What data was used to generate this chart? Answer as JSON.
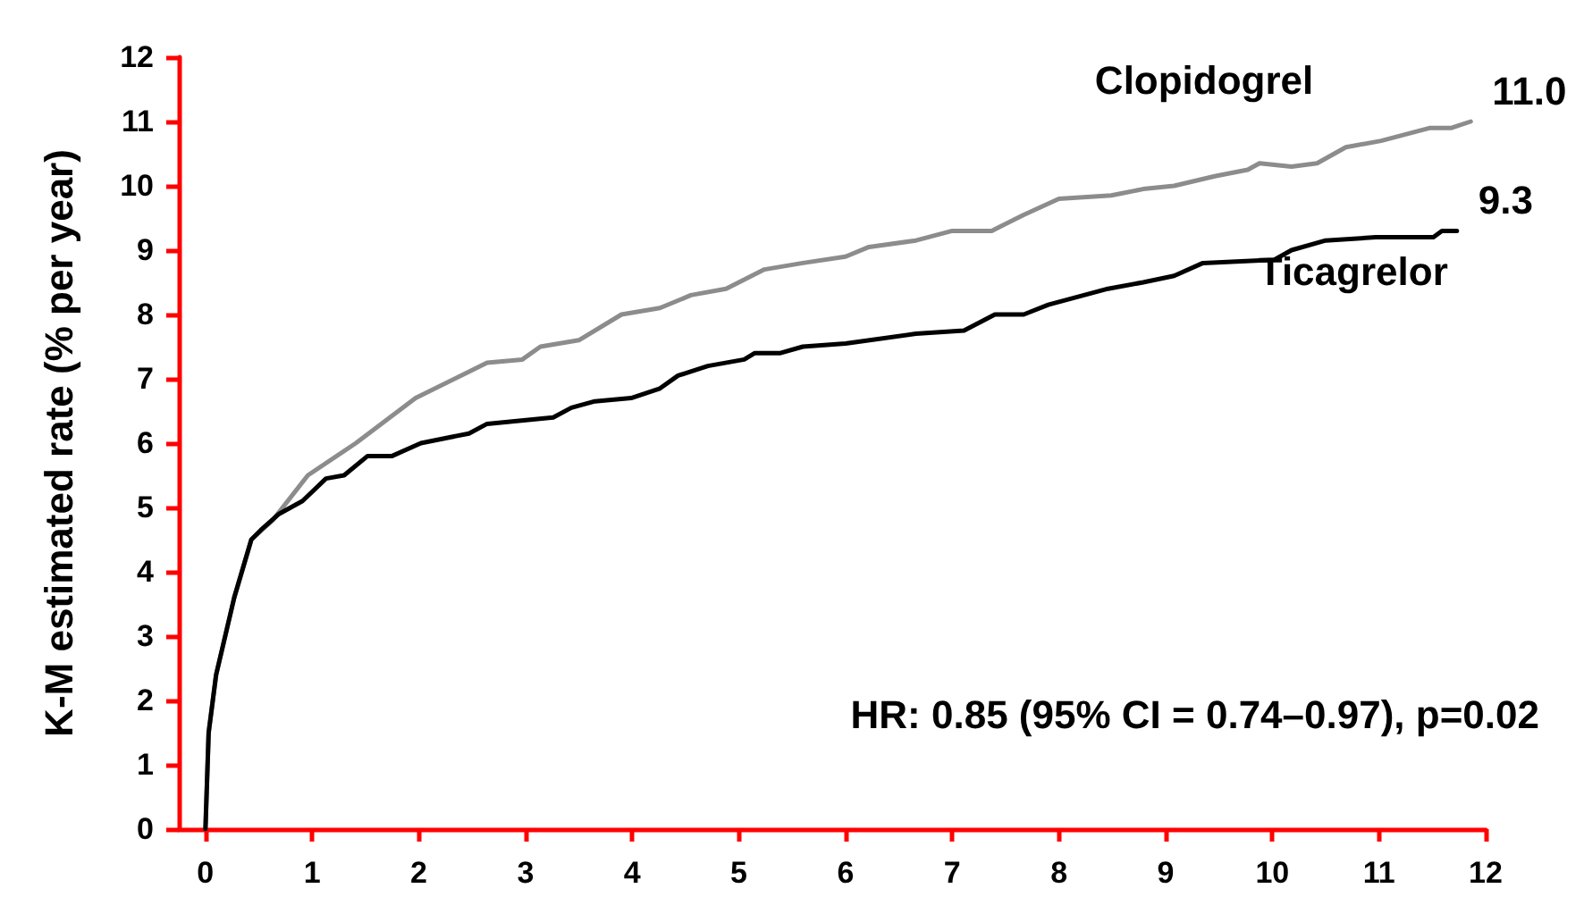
{
  "chart_data": {
    "type": "line",
    "ylabel": "K-M estimated rate (% per year)",
    "xlim": [
      -0.25,
      12
    ],
    "xticks": [
      0,
      1,
      2,
      3,
      4,
      5,
      6,
      7,
      8,
      9,
      10,
      11,
      12
    ],
    "ylim": [
      0,
      12
    ],
    "yticks": [
      0,
      1,
      2,
      3,
      4,
      5,
      6,
      7,
      8,
      9,
      10,
      11,
      12
    ],
    "grid": false,
    "legend": false,
    "marker": "none",
    "line_style": "solid",
    "series": [
      {
        "name": "Clopidogrel",
        "color": "#8c8c8c",
        "x": [
          0,
          0.03,
          0.1,
          0.27,
          0.43,
          0.63,
          0.96,
          1.41,
          1.97,
          2.64,
          2.97,
          3.14,
          3.5,
          3.9,
          4.26,
          4.55,
          4.88,
          5.24,
          5.6,
          6.0,
          6.22,
          6.66,
          7.0,
          7.37,
          7.67,
          8.0,
          8.49,
          8.79,
          9.08,
          9.46,
          9.77,
          9.88,
          10.18,
          10.42,
          10.69,
          11.02,
          11.48,
          11.68,
          11.86
        ],
        "values": [
          0,
          1.5,
          2.4,
          3.6,
          4.5,
          4.8,
          5.5,
          6.0,
          6.7,
          7.25,
          7.3,
          7.5,
          7.6,
          8.0,
          8.1,
          8.3,
          8.4,
          8.7,
          8.8,
          8.9,
          9.05,
          9.15,
          9.3,
          9.3,
          9.55,
          9.8,
          9.85,
          9.95,
          10.0,
          10.15,
          10.25,
          10.35,
          10.3,
          10.35,
          10.6,
          10.7,
          10.9,
          10.9,
          11.0
        ]
      },
      {
        "name": "Ticagrelor",
        "color": "#000000",
        "x": [
          0,
          0.03,
          0.1,
          0.27,
          0.43,
          0.52,
          0.69,
          0.91,
          1.13,
          1.3,
          1.52,
          1.75,
          2.02,
          2.47,
          2.64,
          3.26,
          3.43,
          3.65,
          3.99,
          4.26,
          4.43,
          4.71,
          5.05,
          5.15,
          5.39,
          5.6,
          6.0,
          6.66,
          7.11,
          7.4,
          7.67,
          7.9,
          8.46,
          8.79,
          9.08,
          9.35,
          10.02,
          10.18,
          10.5,
          10.97,
          11.51,
          11.59,
          11.73
        ],
        "values": [
          0,
          1.5,
          2.4,
          3.6,
          4.5,
          4.65,
          4.9,
          5.1,
          5.45,
          5.5,
          5.8,
          5.8,
          6.0,
          6.15,
          6.3,
          6.4,
          6.55,
          6.65,
          6.7,
          6.85,
          7.05,
          7.2,
          7.3,
          7.4,
          7.4,
          7.5,
          7.55,
          7.7,
          7.75,
          8.0,
          8.0,
          8.15,
          8.4,
          8.5,
          8.6,
          8.8,
          8.85,
          9.0,
          9.15,
          9.2,
          9.2,
          9.3,
          9.3
        ]
      }
    ],
    "annotations": [
      {
        "text": "11.0",
        "x": 11.86,
        "y": 11.0
      },
      {
        "text": "9.3",
        "x": 11.73,
        "y": 9.3
      },
      "HR: 0.85 (95% CI = 0.74–0.97), p=0.02"
    ]
  }
}
